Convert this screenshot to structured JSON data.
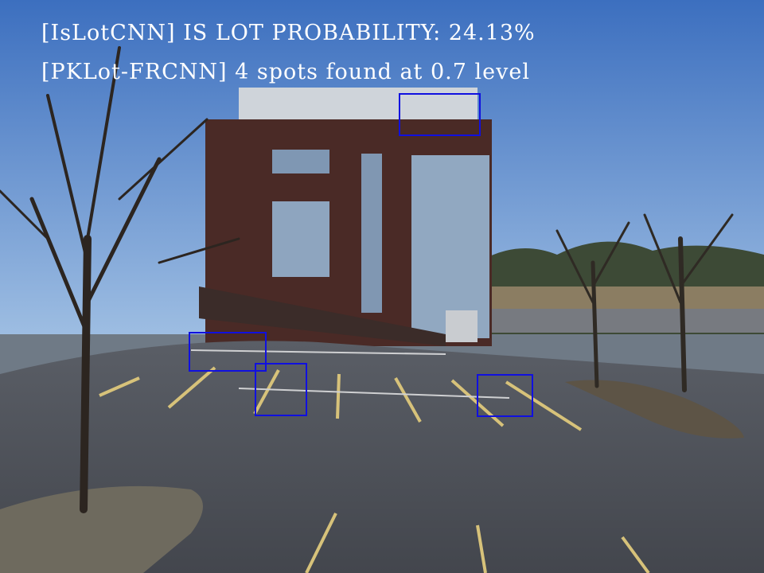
{
  "overlay": {
    "line1": "[IsLotCNN] IS LOT PROBABILITY: 24.13%",
    "line2": "[PKLot-FRCNN] 4 spots found at 0.7 level"
  },
  "detections": {
    "count": 4,
    "threshold": 0.7,
    "box_color": "#1010e0"
  },
  "colors": {
    "sky": "#4f7fc4",
    "building": "#4a2a26",
    "asphalt": "#4a4e55",
    "overlay_text": "#ffffff"
  }
}
